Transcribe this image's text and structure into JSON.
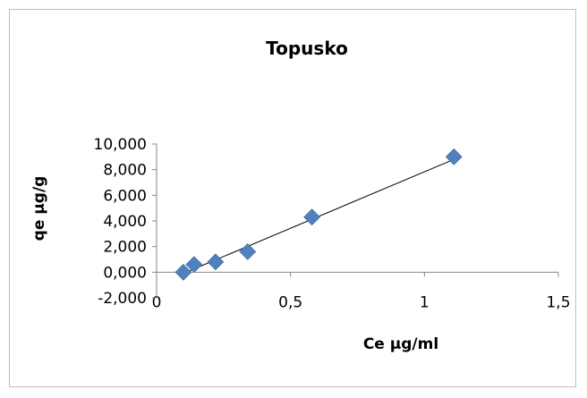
{
  "chart_data": {
    "type": "scatter",
    "title": "Topusko",
    "xlabel": "Ce µg/ml",
    "ylabel": "qe µg/g",
    "xlim": [
      0,
      1.5
    ],
    "ylim": [
      -2,
      10
    ],
    "x_ticks": [
      "0",
      "0,5",
      "1",
      "1,5"
    ],
    "x_tick_values": [
      0,
      0.5,
      1,
      1.5
    ],
    "y_ticks": [
      "10,000",
      "8,000",
      "6,000",
      "4,000",
      "2,000",
      "0,000",
      "-2,000"
    ],
    "y_tick_values": [
      10,
      8,
      6,
      4,
      2,
      0,
      -2
    ],
    "grid": false,
    "legend": "none",
    "marker_color": "#4F81BD",
    "trendline": {
      "type": "linear",
      "color": "#000000",
      "x": [
        0.1,
        1.11
      ],
      "y": [
        -0.1,
        8.8
      ]
    },
    "series": [
      {
        "x": [
          0.1,
          0.14,
          0.22,
          0.34,
          0.58,
          1.11
        ],
        "y": [
          0.0,
          0.6,
          0.8,
          1.6,
          4.3,
          9.0
        ]
      }
    ]
  }
}
